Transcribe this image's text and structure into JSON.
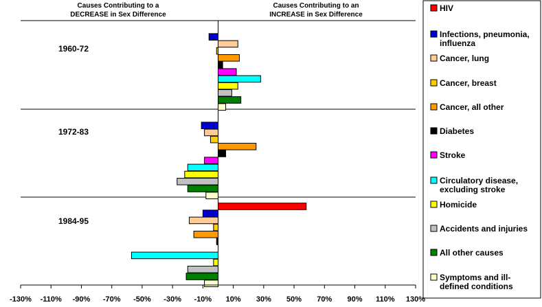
{
  "chart_data": {
    "type": "bar",
    "orientation": "horizontal",
    "grouped": true,
    "header_left": [
      "Causes Contributing to a",
      "DECREASE in Sex Difference"
    ],
    "header_right": [
      "Causes Contributing to an",
      "INCREASE in Sex Difference"
    ],
    "x_ticks": [
      "-130%",
      "-110%",
      "-90%",
      "-70%",
      "-50%",
      "-30%",
      "-10%",
      "10%",
      "30%",
      "50%",
      "70%",
      "90%",
      "110%",
      "130%"
    ],
    "xlim": [
      -130,
      130
    ],
    "x_unit": "%",
    "legend_position": "right",
    "groups": [
      "1960-72",
      "1972-83",
      "1984-95"
    ],
    "series": [
      {
        "name": "HIV",
        "color": "#ff0000",
        "values": [
          0,
          0,
          58
        ]
      },
      {
        "name": "Infections, pneumonia, influenza",
        "color": "#0000cc",
        "values": [
          -6,
          -11,
          -10
        ]
      },
      {
        "name": "Cancer, lung",
        "color": "#ffcc99",
        "values": [
          13,
          -9,
          -19
        ]
      },
      {
        "name": "Cancer, breast",
        "color": "#ffcc00",
        "values": [
          -1,
          -5,
          -3
        ]
      },
      {
        "name": "Cancer, all other",
        "color": "#ff9900",
        "values": [
          14,
          25,
          -16
        ]
      },
      {
        "name": "Diabetes",
        "color": "#000000",
        "values": [
          3,
          5,
          -1
        ]
      },
      {
        "name": "Stroke",
        "color": "#ff00ff",
        "values": [
          12,
          -9,
          0
        ]
      },
      {
        "name": "Circulatory disease, excluding stroke",
        "color": "#00ffff",
        "values": [
          28,
          -20,
          -57
        ]
      },
      {
        "name": "Homicide",
        "color": "#ffff00",
        "values": [
          13,
          -22,
          -3
        ]
      },
      {
        "name": "Accidents and injuries",
        "color": "#c0c0c0",
        "values": [
          9,
          -27,
          -20
        ]
      },
      {
        "name": "All other causes",
        "color": "#008000",
        "values": [
          15,
          -20,
          -21
        ]
      },
      {
        "name": "Symptoms and ill-defined conditions",
        "color": "#ffffcc",
        "values": [
          5,
          -8,
          -9
        ]
      }
    ],
    "legend_labels": [
      [
        "HIV"
      ],
      [
        "Infections, pneumonia,",
        "influenza"
      ],
      [
        "Cancer, lung"
      ],
      [
        "Cancer, breast"
      ],
      [
        "Cancer, all other"
      ],
      [
        "Diabetes"
      ],
      [
        "Stroke"
      ],
      [
        "Circulatory disease,",
        "excluding stroke"
      ],
      [
        "Homicide"
      ],
      [
        "Accidents and injuries"
      ],
      [
        "All other causes"
      ],
      [
        "Symptoms and ill-",
        "defined conditions"
      ]
    ]
  }
}
